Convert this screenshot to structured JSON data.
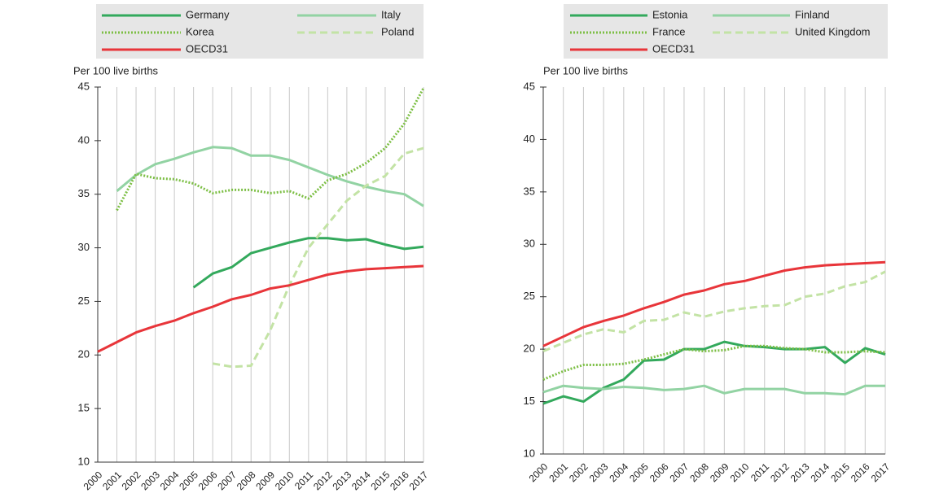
{
  "chart_data": [
    {
      "type": "line",
      "ylabel": "Per 100 live births",
      "categories": [
        "2000",
        "2001",
        "2002",
        "2003",
        "2004",
        "2005",
        "2006",
        "2007",
        "2008",
        "2009",
        "2010",
        "2011",
        "2012",
        "2013",
        "2014",
        "2015",
        "2016",
        "2017"
      ],
      "ylim": [
        10,
        45
      ],
      "yticks": [
        10,
        15,
        20,
        25,
        30,
        35,
        40,
        45
      ],
      "grid": true,
      "series": [
        {
          "name": "Germany",
          "color": "#33a95c",
          "style": "solid",
          "values": [
            null,
            null,
            null,
            null,
            null,
            26.3,
            27.6,
            28.2,
            29.5,
            30.0,
            30.5,
            30.9,
            30.9,
            30.7,
            30.8,
            30.3,
            29.9,
            30.1
          ]
        },
        {
          "name": "Italy",
          "color": "#92d3a3",
          "style": "solid",
          "values": [
            null,
            35.3,
            36.8,
            37.8,
            38.3,
            38.9,
            39.4,
            39.3,
            38.6,
            38.6,
            38.2,
            37.5,
            36.8,
            36.2,
            35.7,
            35.3,
            35.0,
            33.9
          ]
        },
        {
          "name": "Korea",
          "color": "#7dbf45",
          "style": "dotted",
          "values": [
            null,
            33.5,
            36.9,
            36.5,
            36.4,
            36.0,
            35.1,
            35.4,
            35.4,
            35.1,
            35.3,
            34.6,
            36.3,
            36.9,
            37.9,
            39.3,
            41.6,
            44.9
          ]
        },
        {
          "name": "Poland",
          "color": "#c3e3a5",
          "style": "dashed",
          "values": [
            null,
            null,
            null,
            null,
            null,
            null,
            19.2,
            18.9,
            19.0,
            22.3,
            26.5,
            30.0,
            32.2,
            34.4,
            35.8,
            36.7,
            38.8,
            39.3
          ]
        },
        {
          "name": "OECD31",
          "color": "#e8353a",
          "style": "solid",
          "values": [
            20.3,
            21.2,
            22.1,
            22.7,
            23.2,
            23.9,
            24.5,
            25.2,
            25.6,
            26.2,
            26.5,
            27.0,
            27.5,
            27.8,
            28.0,
            28.1,
            28.2,
            28.3
          ]
        }
      ]
    },
    {
      "type": "line",
      "ylabel": "Per 100 live births",
      "categories": [
        "2000",
        "2001",
        "2002",
        "2003",
        "2004",
        "2005",
        "2006",
        "2007",
        "2008",
        "2009",
        "2010",
        "2011",
        "2012",
        "2013",
        "2014",
        "2015",
        "2016",
        "2017"
      ],
      "ylim": [
        10,
        45
      ],
      "yticks": [
        10,
        15,
        20,
        25,
        30,
        35,
        40,
        45
      ],
      "grid": true,
      "series": [
        {
          "name": "Estonia",
          "color": "#33a95c",
          "style": "solid",
          "values": [
            14.8,
            15.5,
            15.0,
            16.3,
            17.1,
            18.9,
            19.0,
            20.0,
            20.0,
            20.7,
            20.3,
            20.2,
            20.0,
            20.0,
            20.2,
            18.7,
            20.1,
            19.5
          ]
        },
        {
          "name": "Finland",
          "color": "#92d3a3",
          "style": "solid",
          "values": [
            15.9,
            16.5,
            16.3,
            16.2,
            16.4,
            16.3,
            16.1,
            16.2,
            16.5,
            15.8,
            16.2,
            16.2,
            16.2,
            15.8,
            15.8,
            15.7,
            16.5,
            16.5
          ]
        },
        {
          "name": "France",
          "color": "#7dbf45",
          "style": "dotted",
          "values": [
            17.1,
            17.9,
            18.5,
            18.5,
            18.6,
            19.0,
            19.5,
            20.0,
            19.8,
            19.9,
            20.3,
            20.3,
            20.1,
            20.0,
            19.7,
            19.7,
            19.8,
            19.7
          ]
        },
        {
          "name": "United Kingdom",
          "color": "#c3e3a5",
          "style": "dashed",
          "values": [
            19.8,
            20.6,
            21.4,
            21.9,
            21.6,
            22.7,
            22.8,
            23.5,
            23.1,
            23.6,
            23.9,
            24.1,
            24.2,
            25.0,
            25.3,
            26.0,
            26.4,
            27.4
          ]
        },
        {
          "name": "OECD31",
          "color": "#e8353a",
          "style": "solid",
          "values": [
            20.3,
            21.2,
            22.1,
            22.7,
            23.2,
            23.9,
            24.5,
            25.2,
            25.6,
            26.2,
            26.5,
            27.0,
            27.5,
            27.8,
            28.0,
            28.1,
            28.2,
            28.3
          ]
        }
      ]
    }
  ]
}
